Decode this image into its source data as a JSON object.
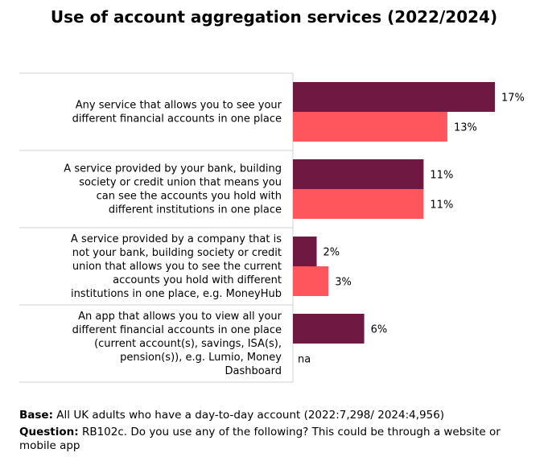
{
  "chart_data": {
    "type": "bar",
    "orientation": "horizontal",
    "title": "Use of account aggregation services (2022/2024)",
    "categories": [
      "Any service that allows you to see your different financial accounts in one place",
      "A service provided by your bank, building society or credit union that means you can see the accounts you hold with different institutions in one place",
      "A service provided by a company that is not your bank, building society or credit union that allows you to see the current accounts you hold with different institutions in one place, e.g. MoneyHub",
      "An app that allows you to view all your different financial accounts in one place (current account(s), savings, ISA(s), pension(s)), e.g. Lumio, Money Dashboard"
    ],
    "category_lines": [
      [
        "Any service that allows you to see your",
        "different financial accounts in one place"
      ],
      [
        "A service provided by your bank, building",
        "society or credit union that means you",
        "can see the accounts you hold with",
        "different institutions in one place"
      ],
      [
        "A service provided by a company that is",
        "not your bank, building society or credit",
        "union that allows you to see the current",
        "accounts you hold with different",
        "institutions in one place, e.g. MoneyHub"
      ],
      [
        "An app that allows you to view all your",
        "different financial accounts in one place",
        "(current account(s), savings, ISA(s),",
        "pension(s)), e.g. Lumio, Money",
        "Dashboard"
      ]
    ],
    "series": [
      {
        "values": [
          17,
          11,
          2,
          6
        ],
        "labels": [
          "17%",
          "11%",
          "2%",
          "6%"
        ],
        "color": "#6f1842"
      },
      {
        "values": [
          13,
          11,
          3,
          null
        ],
        "labels": [
          "13%",
          "11%",
          "3%",
          "na"
        ],
        "color": "#ff555d"
      }
    ],
    "unit": "%",
    "grid": false,
    "legend": "none"
  },
  "footer": {
    "base_label": "Base:",
    "base_text": "All UK adults who have a day-to-day account (2022:7,298/ 2024:4,956)",
    "question_label": "Question:",
    "question_text": "RB102c. Do you use any of the following? This could be through a website or mobile app"
  }
}
